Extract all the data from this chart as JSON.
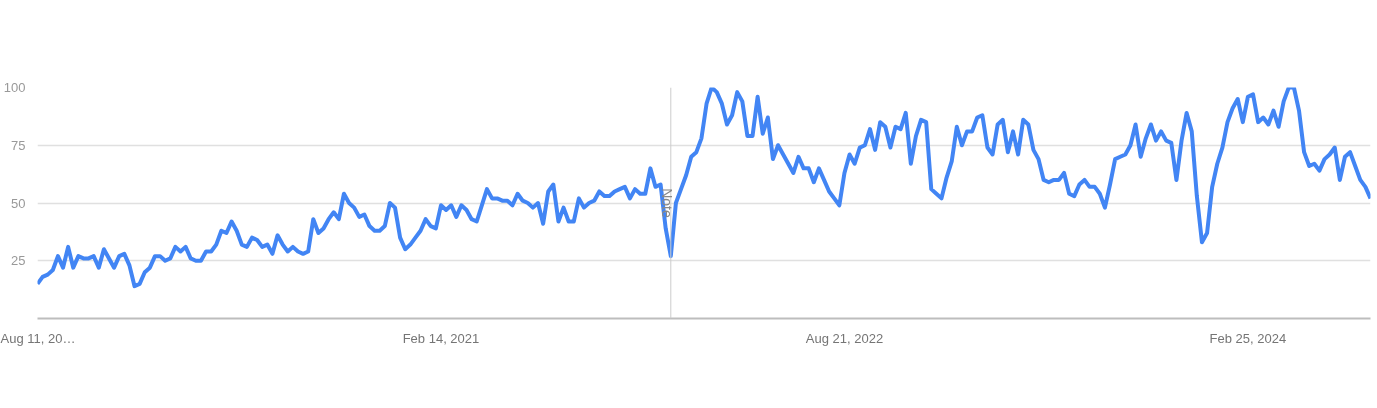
{
  "chart_data": {
    "type": "line",
    "x": [
      "2019-08-11",
      "2019-08-18",
      "2019-08-25",
      "2019-09-01",
      "2019-09-08",
      "2019-09-15",
      "2019-09-22",
      "2019-09-29",
      "2019-10-06",
      "2019-10-13",
      "2019-10-20",
      "2019-10-27",
      "2019-11-03",
      "2019-11-10",
      "2019-11-17",
      "2019-11-24",
      "2019-12-01",
      "2019-12-08",
      "2019-12-15",
      "2019-12-22",
      "2019-12-29",
      "2020-01-05",
      "2020-01-12",
      "2020-01-19",
      "2020-01-26",
      "2020-02-02",
      "2020-02-09",
      "2020-02-16",
      "2020-02-23",
      "2020-03-01",
      "2020-03-08",
      "2020-03-15",
      "2020-03-22",
      "2020-03-29",
      "2020-04-05",
      "2020-04-12",
      "2020-04-19",
      "2020-04-26",
      "2020-05-03",
      "2020-05-10",
      "2020-05-17",
      "2020-05-24",
      "2020-05-31",
      "2020-06-07",
      "2020-06-14",
      "2020-06-21",
      "2020-06-28",
      "2020-07-05",
      "2020-07-12",
      "2020-07-19",
      "2020-07-26",
      "2020-08-02",
      "2020-08-09",
      "2020-08-16",
      "2020-08-23",
      "2020-08-30",
      "2020-09-06",
      "2020-09-13",
      "2020-09-20",
      "2020-09-27",
      "2020-10-04",
      "2020-10-11",
      "2020-10-18",
      "2020-10-25",
      "2020-11-01",
      "2020-11-08",
      "2020-11-15",
      "2020-11-22",
      "2020-11-29",
      "2020-12-06",
      "2020-12-13",
      "2020-12-20",
      "2020-12-27",
      "2021-01-03",
      "2021-01-10",
      "2021-01-17",
      "2021-01-24",
      "2021-01-31",
      "2021-02-07",
      "2021-02-14",
      "2021-02-21",
      "2021-02-28",
      "2021-03-07",
      "2021-03-14",
      "2021-03-21",
      "2021-03-28",
      "2021-04-04",
      "2021-04-11",
      "2021-04-18",
      "2021-04-25",
      "2021-05-02",
      "2021-05-09",
      "2021-05-16",
      "2021-05-23",
      "2021-05-30",
      "2021-06-06",
      "2021-06-13",
      "2021-06-20",
      "2021-06-27",
      "2021-07-04",
      "2021-07-11",
      "2021-07-18",
      "2021-07-25",
      "2021-08-01",
      "2021-08-08",
      "2021-08-15",
      "2021-08-22",
      "2021-08-29",
      "2021-09-05",
      "2021-09-12",
      "2021-09-19",
      "2021-09-26",
      "2021-10-03",
      "2021-10-10",
      "2021-10-17",
      "2021-10-24",
      "2021-10-31",
      "2021-11-07",
      "2021-11-14",
      "2021-11-21",
      "2021-11-28",
      "2021-12-05",
      "2021-12-12",
      "2021-12-19",
      "2021-12-26",
      "2022-01-02",
      "2022-01-09",
      "2022-01-16",
      "2022-01-23",
      "2022-01-30",
      "2022-02-06",
      "2022-02-13",
      "2022-02-20",
      "2022-02-27",
      "2022-03-06",
      "2022-03-13",
      "2022-03-20",
      "2022-03-27",
      "2022-04-03",
      "2022-04-10",
      "2022-04-17",
      "2022-04-24",
      "2022-05-01",
      "2022-05-08",
      "2022-05-15",
      "2022-05-22",
      "2022-05-29",
      "2022-06-05",
      "2022-06-12",
      "2022-06-19",
      "2022-06-26",
      "2022-07-03",
      "2022-07-10",
      "2022-07-17",
      "2022-07-24",
      "2022-07-31",
      "2022-08-07",
      "2022-08-14",
      "2022-08-21",
      "2022-08-28",
      "2022-09-04",
      "2022-09-11",
      "2022-09-18",
      "2022-09-25",
      "2022-10-02",
      "2022-10-09",
      "2022-10-16",
      "2022-10-23",
      "2022-10-30",
      "2022-11-06",
      "2022-11-13",
      "2022-11-20",
      "2022-11-27",
      "2022-12-04",
      "2022-12-11",
      "2022-12-18",
      "2022-12-25",
      "2023-01-01",
      "2023-01-08",
      "2023-01-15",
      "2023-01-22",
      "2023-01-29",
      "2023-02-05",
      "2023-02-12",
      "2023-02-19",
      "2023-02-26",
      "2023-03-05",
      "2023-03-12",
      "2023-03-19",
      "2023-03-26",
      "2023-04-02",
      "2023-04-09",
      "2023-04-16",
      "2023-04-23",
      "2023-04-30",
      "2023-05-07",
      "2023-05-14",
      "2023-05-21",
      "2023-05-28",
      "2023-06-04",
      "2023-06-11",
      "2023-06-18",
      "2023-06-25",
      "2023-07-02",
      "2023-07-09",
      "2023-07-16",
      "2023-07-23",
      "2023-07-30",
      "2023-08-06",
      "2023-08-13",
      "2023-08-20",
      "2023-08-27",
      "2023-09-03",
      "2023-09-10",
      "2023-09-17",
      "2023-09-24",
      "2023-10-01",
      "2023-10-08",
      "2023-10-15",
      "2023-10-22",
      "2023-10-29",
      "2023-11-05",
      "2023-11-12",
      "2023-11-19",
      "2023-11-26",
      "2023-12-03",
      "2023-12-10",
      "2023-12-17",
      "2023-12-24",
      "2023-12-31",
      "2024-01-07",
      "2024-01-14",
      "2024-01-21",
      "2024-01-28",
      "2024-02-04",
      "2024-02-11",
      "2024-02-18",
      "2024-02-25",
      "2024-03-03",
      "2024-03-10",
      "2024-03-17",
      "2024-03-24",
      "2024-03-31",
      "2024-04-07",
      "2024-04-14",
      "2024-04-21",
      "2024-04-28",
      "2024-05-05",
      "2024-05-12",
      "2024-05-19",
      "2024-05-26",
      "2024-06-02",
      "2024-06-09",
      "2024-06-16",
      "2024-06-23",
      "2024-06-30",
      "2024-07-07",
      "2024-07-14",
      "2024-07-21",
      "2024-07-28",
      "2024-08-04",
      "2024-08-11"
    ],
    "series": [
      {
        "color": "#4285f4",
        "values": [
          15,
          18,
          19,
          21,
          27,
          22,
          31,
          22,
          27,
          26,
          26,
          27,
          22,
          30,
          26,
          22,
          27,
          28,
          23,
          14,
          15,
          20,
          22,
          27,
          27,
          25,
          26,
          31,
          29,
          31,
          26,
          25,
          25,
          29,
          29,
          32,
          38,
          37,
          42,
          38,
          32,
          31,
          35,
          34,
          31,
          32,
          28,
          36,
          32,
          29,
          31,
          29,
          28,
          29,
          43,
          37,
          39,
          43,
          46,
          43,
          54,
          50,
          48,
          44,
          45,
          40,
          38,
          38,
          40,
          50,
          48,
          35,
          30,
          32,
          35,
          38,
          43,
          40,
          39,
          49,
          47,
          49,
          44,
          49,
          47,
          43,
          42,
          49,
          56,
          52,
          52,
          51,
          51,
          49,
          54,
          51,
          50,
          48,
          50,
          41,
          55,
          58,
          42,
          48,
          42,
          42,
          52,
          48,
          50,
          51,
          55,
          53,
          53,
          55,
          56,
          57,
          52,
          56,
          54,
          54,
          65,
          57,
          58,
          39,
          27,
          50,
          56,
          62,
          70,
          72,
          78,
          93,
          100,
          98,
          93,
          84,
          88,
          98,
          94,
          79,
          79,
          96,
          80,
          87,
          69,
          75,
          71,
          67,
          63,
          70,
          65,
          65,
          59,
          65,
          60,
          55,
          52,
          49,
          63,
          71,
          67,
          74,
          75,
          82,
          73,
          85,
          83,
          74,
          83,
          82,
          89,
          67,
          79,
          86,
          85,
          56,
          54,
          52,
          61,
          68,
          83,
          75,
          81,
          81,
          87,
          88,
          74,
          71,
          84,
          86,
          72,
          81,
          71,
          86,
          84,
          73,
          69,
          60,
          59,
          60,
          60,
          63,
          54,
          53,
          58,
          60,
          57,
          57,
          54,
          48,
          58,
          69,
          70,
          71,
          75,
          84,
          70,
          78,
          84,
          77,
          81,
          77,
          76,
          60,
          77,
          89,
          81,
          53,
          33,
          37,
          57,
          67,
          74,
          85,
          91,
          95,
          85,
          96,
          97,
          85,
          87,
          84,
          90,
          83,
          94,
          100,
          100,
          90,
          72,
          66,
          67,
          64,
          69,
          71,
          74,
          60,
          70,
          72,
          66,
          60,
          57,
          52
        ]
      }
    ],
    "xlim": [
      "2019-08-11",
      "2024-08-11"
    ],
    "xticks": [
      {
        "value": "2019-08-11",
        "label": "Aug 11, 20…"
      },
      {
        "value": "2021-02-14",
        "label": "Feb 14, 2021"
      },
      {
        "value": "2022-08-21",
        "label": "Aug 21, 2022"
      },
      {
        "value": "2024-02-25",
        "label": "Feb 25, 2024"
      }
    ],
    "ylim": [
      0,
      100
    ],
    "yticks": [
      25,
      50,
      75,
      100
    ],
    "grid": "y",
    "line_style": "solid",
    "marker": "none",
    "ref_lines": [
      {
        "axis": "x",
        "value": "2021-12-26",
        "label": "Note",
        "color": "#cccccc"
      }
    ]
  }
}
